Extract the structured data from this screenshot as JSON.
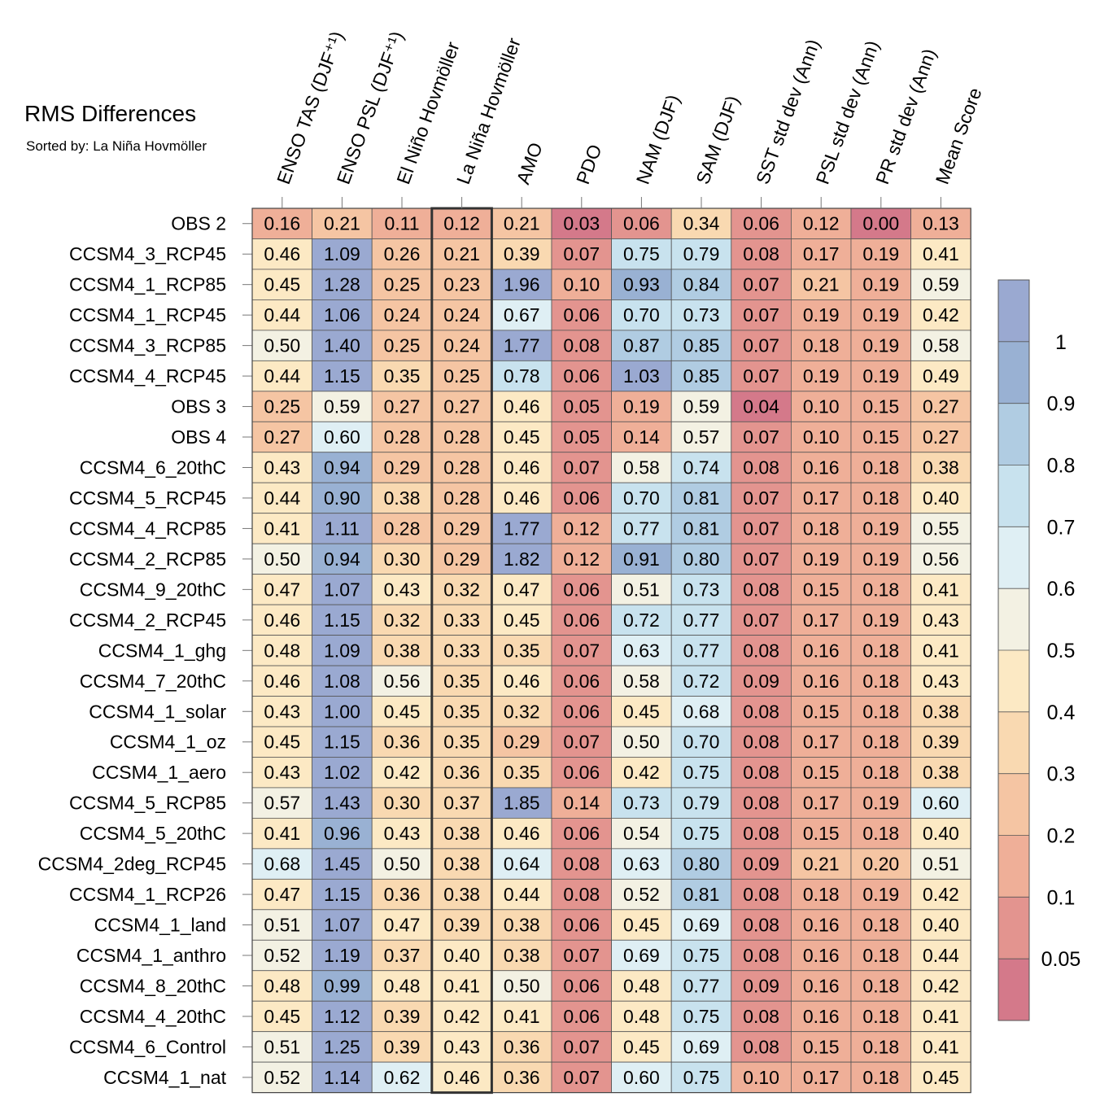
{
  "chart_data": {
    "type": "heatmap",
    "title": "RMS Differences",
    "subtitle": "Sorted by: La Niña Hovmöller",
    "columns": [
      "ENSO TAS (DJF⁺¹)",
      "ENSO PSL (DJF⁺¹)",
      "El Niño Hovmöller",
      "La Niña Hovmöller",
      "AMO",
      "PDO",
      "NAM (DJF)",
      "SAM (DJF)",
      "SST std dev (Ann)",
      "PSL std dev (Ann)",
      "PR std dev (Ann)",
      "Mean Score"
    ],
    "highlighted_column": "La Niña Hovmöller",
    "rows": [
      {
        "label": "OBS 2",
        "values": [
          "0.16",
          "0.21",
          "0.11",
          "0.12",
          "0.21",
          "0.03",
          "0.06",
          "0.34",
          "0.06",
          "0.12",
          "0.00",
          "0.13"
        ]
      },
      {
        "label": "CCSM4_3_RCP45",
        "values": [
          "0.46",
          "1.09",
          "0.26",
          "0.21",
          "0.39",
          "0.07",
          "0.75",
          "0.79",
          "0.08",
          "0.17",
          "0.19",
          "0.41"
        ]
      },
      {
        "label": "CCSM4_1_RCP85",
        "values": [
          "0.45",
          "1.28",
          "0.25",
          "0.23",
          "1.96",
          "0.10",
          "0.93",
          "0.84",
          "0.07",
          "0.21",
          "0.19",
          "0.59"
        ]
      },
      {
        "label": "CCSM4_1_RCP45",
        "values": [
          "0.44",
          "1.06",
          "0.24",
          "0.24",
          "0.67",
          "0.06",
          "0.70",
          "0.73",
          "0.07",
          "0.19",
          "0.19",
          "0.42"
        ]
      },
      {
        "label": "CCSM4_3_RCP85",
        "values": [
          "0.50",
          "1.40",
          "0.25",
          "0.24",
          "1.77",
          "0.08",
          "0.87",
          "0.85",
          "0.07",
          "0.18",
          "0.19",
          "0.58"
        ]
      },
      {
        "label": "CCSM4_4_RCP45",
        "values": [
          "0.44",
          "1.15",
          "0.35",
          "0.25",
          "0.78",
          "0.06",
          "1.03",
          "0.85",
          "0.07",
          "0.19",
          "0.19",
          "0.49"
        ]
      },
      {
        "label": "OBS 3",
        "values": [
          "0.25",
          "0.59",
          "0.27",
          "0.27",
          "0.46",
          "0.05",
          "0.19",
          "0.59",
          "0.04",
          "0.10",
          "0.15",
          "0.27"
        ]
      },
      {
        "label": "OBS 4",
        "values": [
          "0.27",
          "0.60",
          "0.28",
          "0.28",
          "0.45",
          "0.05",
          "0.14",
          "0.57",
          "0.07",
          "0.10",
          "0.15",
          "0.27"
        ]
      },
      {
        "label": "CCSM4_6_20thC",
        "values": [
          "0.43",
          "0.94",
          "0.29",
          "0.28",
          "0.46",
          "0.07",
          "0.58",
          "0.74",
          "0.08",
          "0.16",
          "0.18",
          "0.38"
        ]
      },
      {
        "label": "CCSM4_5_RCP45",
        "values": [
          "0.44",
          "0.90",
          "0.38",
          "0.28",
          "0.46",
          "0.06",
          "0.70",
          "0.81",
          "0.07",
          "0.17",
          "0.18",
          "0.40"
        ]
      },
      {
        "label": "CCSM4_4_RCP85",
        "values": [
          "0.41",
          "1.11",
          "0.28",
          "0.29",
          "1.77",
          "0.12",
          "0.77",
          "0.81",
          "0.07",
          "0.18",
          "0.19",
          "0.55"
        ]
      },
      {
        "label": "CCSM4_2_RCP85",
        "values": [
          "0.50",
          "0.94",
          "0.30",
          "0.29",
          "1.82",
          "0.12",
          "0.91",
          "0.80",
          "0.07",
          "0.19",
          "0.19",
          "0.56"
        ]
      },
      {
        "label": "CCSM4_9_20thC",
        "values": [
          "0.47",
          "1.07",
          "0.43",
          "0.32",
          "0.47",
          "0.06",
          "0.51",
          "0.73",
          "0.08",
          "0.15",
          "0.18",
          "0.41"
        ]
      },
      {
        "label": "CCSM4_2_RCP45",
        "values": [
          "0.46",
          "1.15",
          "0.32",
          "0.33",
          "0.45",
          "0.06",
          "0.72",
          "0.77",
          "0.07",
          "0.17",
          "0.19",
          "0.43"
        ]
      },
      {
        "label": "CCSM4_1_ghg",
        "values": [
          "0.48",
          "1.09",
          "0.38",
          "0.33",
          "0.35",
          "0.07",
          "0.63",
          "0.77",
          "0.08",
          "0.16",
          "0.18",
          "0.41"
        ]
      },
      {
        "label": "CCSM4_7_20thC",
        "values": [
          "0.46",
          "1.08",
          "0.56",
          "0.35",
          "0.46",
          "0.06",
          "0.58",
          "0.72",
          "0.09",
          "0.16",
          "0.18",
          "0.43"
        ]
      },
      {
        "label": "CCSM4_1_solar",
        "values": [
          "0.43",
          "1.00",
          "0.45",
          "0.35",
          "0.32",
          "0.06",
          "0.45",
          "0.68",
          "0.08",
          "0.15",
          "0.18",
          "0.38"
        ]
      },
      {
        "label": "CCSM4_1_oz",
        "values": [
          "0.45",
          "1.15",
          "0.36",
          "0.35",
          "0.29",
          "0.07",
          "0.50",
          "0.70",
          "0.08",
          "0.17",
          "0.18",
          "0.39"
        ]
      },
      {
        "label": "CCSM4_1_aero",
        "values": [
          "0.43",
          "1.02",
          "0.42",
          "0.36",
          "0.35",
          "0.06",
          "0.42",
          "0.75",
          "0.08",
          "0.15",
          "0.18",
          "0.38"
        ]
      },
      {
        "label": "CCSM4_5_RCP85",
        "values": [
          "0.57",
          "1.43",
          "0.30",
          "0.37",
          "1.85",
          "0.14",
          "0.73",
          "0.79",
          "0.08",
          "0.17",
          "0.19",
          "0.60"
        ]
      },
      {
        "label": "CCSM4_5_20thC",
        "values": [
          "0.41",
          "0.96",
          "0.43",
          "0.38",
          "0.46",
          "0.06",
          "0.54",
          "0.75",
          "0.08",
          "0.15",
          "0.18",
          "0.40"
        ]
      },
      {
        "label": "CCSM4_2deg_RCP45",
        "values": [
          "0.68",
          "1.45",
          "0.50",
          "0.38",
          "0.64",
          "0.08",
          "0.63",
          "0.80",
          "0.09",
          "0.21",
          "0.20",
          "0.51"
        ]
      },
      {
        "label": "CCSM4_1_RCP26",
        "values": [
          "0.47",
          "1.15",
          "0.36",
          "0.38",
          "0.44",
          "0.08",
          "0.52",
          "0.81",
          "0.08",
          "0.18",
          "0.19",
          "0.42"
        ]
      },
      {
        "label": "CCSM4_1_land",
        "values": [
          "0.51",
          "1.07",
          "0.47",
          "0.39",
          "0.38",
          "0.06",
          "0.45",
          "0.69",
          "0.08",
          "0.16",
          "0.18",
          "0.40"
        ]
      },
      {
        "label": "CCSM4_1_anthro",
        "values": [
          "0.52",
          "1.19",
          "0.37",
          "0.40",
          "0.38",
          "0.07",
          "0.69",
          "0.75",
          "0.08",
          "0.16",
          "0.18",
          "0.44"
        ]
      },
      {
        "label": "CCSM4_8_20thC",
        "values": [
          "0.48",
          "0.99",
          "0.48",
          "0.41",
          "0.50",
          "0.06",
          "0.48",
          "0.77",
          "0.09",
          "0.16",
          "0.18",
          "0.42"
        ]
      },
      {
        "label": "CCSM4_4_20thC",
        "values": [
          "0.45",
          "1.12",
          "0.39",
          "0.42",
          "0.41",
          "0.06",
          "0.48",
          "0.75",
          "0.08",
          "0.16",
          "0.18",
          "0.41"
        ]
      },
      {
        "label": "CCSM4_6_Control",
        "values": [
          "0.51",
          "1.25",
          "0.39",
          "0.43",
          "0.36",
          "0.07",
          "0.45",
          "0.69",
          "0.08",
          "0.15",
          "0.18",
          "0.41"
        ]
      },
      {
        "label": "CCSM4_1_nat",
        "values": [
          "0.52",
          "1.14",
          "0.62",
          "0.46",
          "0.36",
          "0.07",
          "0.60",
          "0.75",
          "0.10",
          "0.17",
          "0.18",
          "0.45"
        ]
      }
    ],
    "colorbar": {
      "levels": [
        0.05,
        0.1,
        0.2,
        0.3,
        0.4,
        0.5,
        0.6,
        0.7,
        0.8,
        0.9,
        1
      ],
      "labels": [
        "0.05",
        "0.1",
        "0.2",
        "0.3",
        "0.4",
        "0.5",
        "0.6",
        "0.7",
        "0.8",
        "0.9",
        "1"
      ],
      "colors": [
        "#d4798a",
        "#e3948f",
        "#efaf98",
        "#f5c5a3",
        "#f9d9b1",
        "#fce9c4",
        "#f3f1e3",
        "#dfeff4",
        "#c8e2ee",
        "#b0cce2",
        "#99b1d3",
        "#9aa9d1"
      ]
    }
  }
}
